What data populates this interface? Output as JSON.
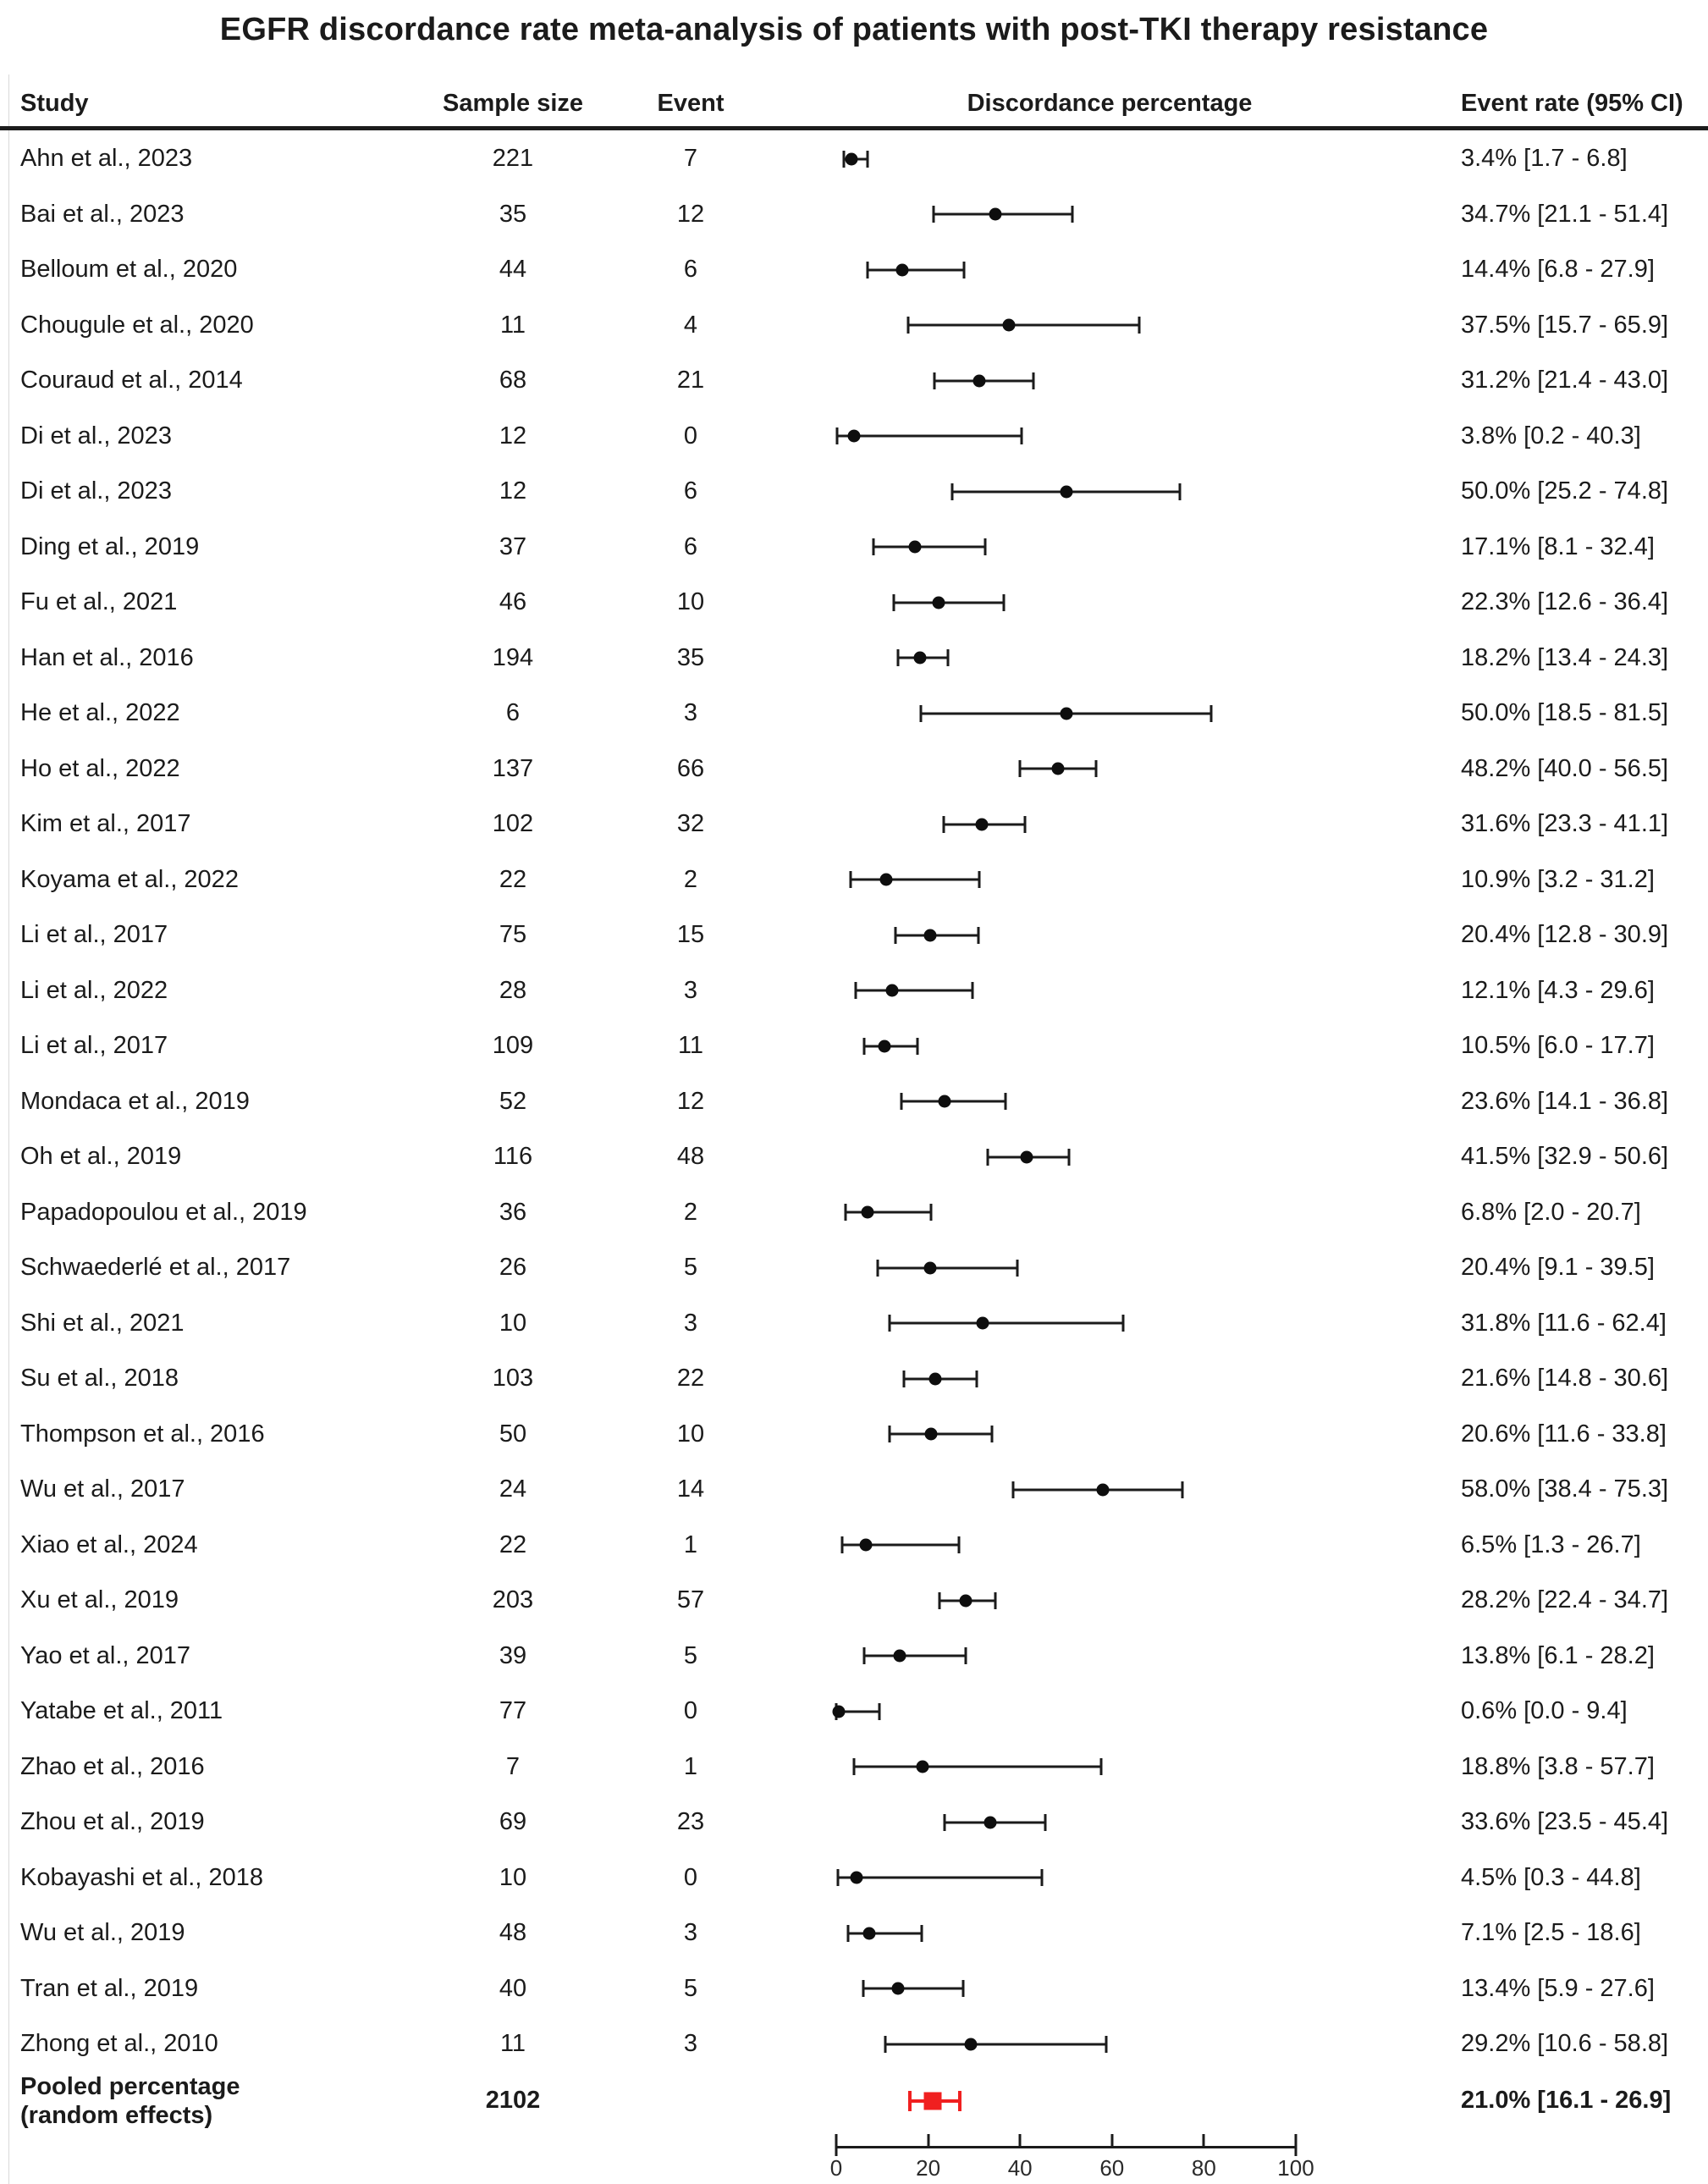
{
  "title": "EGFR discordance rate meta-analysis of patients with post-TKI therapy resistance",
  "columns": {
    "study": "Study",
    "sample_size": "Sample size",
    "event": "Event",
    "plot": "Discordance percentage",
    "rate": "Event rate (95% CI)"
  },
  "colors": {
    "marker": "#0e0e0e",
    "pooled": "#f02020",
    "text": "#1b1b1b"
  },
  "studies": [
    {
      "label": "Ahn et al., 2023",
      "sample": "221",
      "event": "7",
      "rate": 3.4,
      "lo": 1.7,
      "hi": 6.8,
      "rate_text": "3.4% [1.7 - 6.8]"
    },
    {
      "label": "Bai et al., 2023",
      "sample": "35",
      "event": "12",
      "rate": 34.7,
      "lo": 21.1,
      "hi": 51.4,
      "rate_text": "34.7% [21.1 - 51.4]"
    },
    {
      "label": "Belloum et al., 2020",
      "sample": "44",
      "event": "6",
      "rate": 14.4,
      "lo": 6.8,
      "hi": 27.9,
      "rate_text": "14.4% [6.8 - 27.9]"
    },
    {
      "label": "Chougule et al., 2020",
      "sample": "11",
      "event": "4",
      "rate": 37.5,
      "lo": 15.7,
      "hi": 65.9,
      "rate_text": "37.5% [15.7 - 65.9]"
    },
    {
      "label": "Couraud et al., 2014",
      "sample": "68",
      "event": "21",
      "rate": 31.2,
      "lo": 21.4,
      "hi": 43.0,
      "rate_text": "31.2% [21.4 - 43.0]"
    },
    {
      "label": "Di et al., 2023",
      "sample": "12",
      "event": "0",
      "rate": 3.8,
      "lo": 0.2,
      "hi": 40.3,
      "rate_text": "3.8% [0.2 - 40.3]"
    },
    {
      "label": "Di et al., 2023",
      "sample": "12",
      "event": "6",
      "rate": 50.0,
      "lo": 25.2,
      "hi": 74.8,
      "rate_text": "50.0% [25.2 - 74.8]"
    },
    {
      "label": "Ding et al., 2019",
      "sample": "37",
      "event": "6",
      "rate": 17.1,
      "lo": 8.1,
      "hi": 32.4,
      "rate_text": "17.1% [8.1 - 32.4]"
    },
    {
      "label": "Fu et al., 2021",
      "sample": "46",
      "event": "10",
      "rate": 22.3,
      "lo": 12.6,
      "hi": 36.4,
      "rate_text": "22.3% [12.6 - 36.4]"
    },
    {
      "label": "Han et al., 2016",
      "sample": "194",
      "event": "35",
      "rate": 18.2,
      "lo": 13.4,
      "hi": 24.3,
      "rate_text": "18.2% [13.4 - 24.3]"
    },
    {
      "label": "He et al., 2022",
      "sample": "6",
      "event": "3",
      "rate": 50.0,
      "lo": 18.5,
      "hi": 81.5,
      "rate_text": "50.0% [18.5 - 81.5]"
    },
    {
      "label": "Ho et al., 2022",
      "sample": "137",
      "event": "66",
      "rate": 48.2,
      "lo": 40.0,
      "hi": 56.5,
      "rate_text": "48.2% [40.0 - 56.5]"
    },
    {
      "label": "Kim et al., 2017",
      "sample": "102",
      "event": "32",
      "rate": 31.6,
      "lo": 23.3,
      "hi": 41.1,
      "rate_text": "31.6% [23.3 - 41.1]"
    },
    {
      "label": "Koyama et al., 2022",
      "sample": "22",
      "event": "2",
      "rate": 10.9,
      "lo": 3.2,
      "hi": 31.2,
      "rate_text": "10.9% [3.2 - 31.2]"
    },
    {
      "label": "Li et al., 2017",
      "sample": "75",
      "event": "15",
      "rate": 20.4,
      "lo": 12.8,
      "hi": 30.9,
      "rate_text": "20.4% [12.8 - 30.9]"
    },
    {
      "label": "Li et al., 2022",
      "sample": "28",
      "event": "3",
      "rate": 12.1,
      "lo": 4.3,
      "hi": 29.6,
      "rate_text": "12.1% [4.3 - 29.6]"
    },
    {
      "label": "Li et al., 2017",
      "sample": "109",
      "event": "11",
      "rate": 10.5,
      "lo": 6.0,
      "hi": 17.7,
      "rate_text": "10.5% [6.0 - 17.7]"
    },
    {
      "label": "Mondaca et al., 2019",
      "sample": "52",
      "event": "12",
      "rate": 23.6,
      "lo": 14.1,
      "hi": 36.8,
      "rate_text": "23.6% [14.1 - 36.8]"
    },
    {
      "label": "Oh et al., 2019",
      "sample": "116",
      "event": "48",
      "rate": 41.5,
      "lo": 32.9,
      "hi": 50.6,
      "rate_text": "41.5% [32.9 - 50.6]"
    },
    {
      "label": "Papadopoulou et al., 2019",
      "sample": "36",
      "event": "2",
      "rate": 6.8,
      "lo": 2.0,
      "hi": 20.7,
      "rate_text": "6.8% [2.0 - 20.7]"
    },
    {
      "label": "Schwaederlé et al., 2017",
      "sample": "26",
      "event": "5",
      "rate": 20.4,
      "lo": 9.1,
      "hi": 39.5,
      "rate_text": "20.4% [9.1 - 39.5]"
    },
    {
      "label": "Shi et al., 2021",
      "sample": "10",
      "event": "3",
      "rate": 31.8,
      "lo": 11.6,
      "hi": 62.4,
      "rate_text": "31.8% [11.6 - 62.4]"
    },
    {
      "label": "Su et al., 2018",
      "sample": "103",
      "event": "22",
      "rate": 21.6,
      "lo": 14.8,
      "hi": 30.6,
      "rate_text": "21.6% [14.8 - 30.6]"
    },
    {
      "label": "Thompson et al., 2016",
      "sample": "50",
      "event": "10",
      "rate": 20.6,
      "lo": 11.6,
      "hi": 33.8,
      "rate_text": "20.6% [11.6 - 33.8]"
    },
    {
      "label": "Wu et al., 2017",
      "sample": "24",
      "event": "14",
      "rate": 58.0,
      "lo": 38.4,
      "hi": 75.3,
      "rate_text": "58.0% [38.4 - 75.3]"
    },
    {
      "label": "Xiao et al., 2024",
      "sample": "22",
      "event": "1",
      "rate": 6.5,
      "lo": 1.3,
      "hi": 26.7,
      "rate_text": "6.5% [1.3 - 26.7]"
    },
    {
      "label": "Xu et al., 2019",
      "sample": "203",
      "event": "57",
      "rate": 28.2,
      "lo": 22.4,
      "hi": 34.7,
      "rate_text": "28.2% [22.4 - 34.7]"
    },
    {
      "label": "Yao et al., 2017",
      "sample": "39",
      "event": "5",
      "rate": 13.8,
      "lo": 6.1,
      "hi": 28.2,
      "rate_text": "13.8% [6.1 - 28.2]"
    },
    {
      "label": "Yatabe et al., 2011",
      "sample": "77",
      "event": "0",
      "rate": 0.6,
      "lo": 0.0,
      "hi": 9.4,
      "rate_text": "0.6% [0.0 - 9.4]"
    },
    {
      "label": "Zhao et al., 2016",
      "sample": "7",
      "event": "1",
      "rate": 18.8,
      "lo": 3.8,
      "hi": 57.7,
      "rate_text": "18.8% [3.8 - 57.7]"
    },
    {
      "label": "Zhou et al., 2019",
      "sample": "69",
      "event": "23",
      "rate": 33.6,
      "lo": 23.5,
      "hi": 45.4,
      "rate_text": "33.6% [23.5 - 45.4]"
    },
    {
      "label": "Kobayashi et al., 2018",
      "sample": "10",
      "event": "0",
      "rate": 4.5,
      "lo": 0.3,
      "hi": 44.8,
      "rate_text": "4.5% [0.3 - 44.8]"
    },
    {
      "label": "Wu et al., 2019",
      "sample": "48",
      "event": "3",
      "rate": 7.1,
      "lo": 2.5,
      "hi": 18.6,
      "rate_text": "7.1% [2.5 - 18.6]"
    },
    {
      "label": "Tran et al., 2019",
      "sample": "40",
      "event": "5",
      "rate": 13.4,
      "lo": 5.9,
      "hi": 27.6,
      "rate_text": "13.4% [5.9 - 27.6]"
    },
    {
      "label": "Zhong et al., 2010",
      "sample": "11",
      "event": "3",
      "rate": 29.2,
      "lo": 10.6,
      "hi": 58.8,
      "rate_text": "29.2% [10.6 - 58.8]"
    }
  ],
  "pooled": {
    "label_line1": "Pooled percentage",
    "label_line2": "(random effects)",
    "sample": "2102",
    "rate": 21.0,
    "lo": 16.1,
    "hi": 26.9,
    "rate_text": "21.0% [16.1 - 26.9]"
  },
  "axis": {
    "min": 0,
    "max": 100,
    "ticks": [
      0,
      20,
      40,
      60,
      80,
      100
    ]
  },
  "chart_data": {
    "type": "scatter",
    "subtype": "forest-plot",
    "title": "EGFR discordance rate meta-analysis of patients with post-TKI therapy resistance",
    "xlabel": "Discordance percentage",
    "xlim": [
      0,
      100
    ],
    "xticks": [
      0,
      20,
      40,
      60,
      80,
      100
    ],
    "grid": false,
    "categories": [
      "Ahn et al., 2023",
      "Bai et al., 2023",
      "Belloum et al., 2020",
      "Chougule et al., 2020",
      "Couraud et al., 2014",
      "Di et al., 2023",
      "Di et al., 2023",
      "Ding et al., 2019",
      "Fu et al., 2021",
      "Han et al., 2016",
      "He et al., 2022",
      "Ho et al., 2022",
      "Kim et al., 2017",
      "Koyama et al., 2022",
      "Li et al., 2017",
      "Li et al., 2022",
      "Li et al., 2017",
      "Mondaca et al., 2019",
      "Oh et al., 2019",
      "Papadopoulou et al., 2019",
      "Schwaederlé et al., 2017",
      "Shi et al., 2021",
      "Su et al., 2018",
      "Thompson et al., 2016",
      "Wu et al., 2017",
      "Xiao et al., 2024",
      "Xu et al., 2019",
      "Yao et al., 2017",
      "Yatabe et al., 2011",
      "Zhao et al., 2016",
      "Zhou et al., 2019",
      "Kobayashi et al., 2018",
      "Wu et al., 2019",
      "Tran et al., 2019",
      "Zhong et al., 2010"
    ],
    "series": [
      {
        "name": "Sample size",
        "values": [
          221,
          35,
          44,
          11,
          68,
          12,
          12,
          37,
          46,
          194,
          6,
          137,
          102,
          22,
          75,
          28,
          109,
          52,
          116,
          36,
          26,
          10,
          103,
          50,
          24,
          22,
          203,
          39,
          77,
          7,
          69,
          10,
          48,
          40,
          11
        ]
      },
      {
        "name": "Event",
        "values": [
          7,
          12,
          6,
          4,
          21,
          0,
          6,
          6,
          10,
          35,
          3,
          66,
          32,
          2,
          15,
          3,
          11,
          12,
          48,
          2,
          5,
          3,
          22,
          10,
          14,
          1,
          57,
          5,
          0,
          1,
          23,
          0,
          3,
          5,
          3
        ]
      },
      {
        "name": "Event rate %",
        "values": [
          3.4,
          34.7,
          14.4,
          37.5,
          31.2,
          3.8,
          50.0,
          17.1,
          22.3,
          18.2,
          50.0,
          48.2,
          31.6,
          10.9,
          20.4,
          12.1,
          10.5,
          23.6,
          41.5,
          6.8,
          20.4,
          31.8,
          21.6,
          20.6,
          58.0,
          6.5,
          28.2,
          13.8,
          0.6,
          18.8,
          33.6,
          4.5,
          7.1,
          13.4,
          29.2
        ]
      },
      {
        "name": "CI lower",
        "values": [
          1.7,
          21.1,
          6.8,
          15.7,
          21.4,
          0.2,
          25.2,
          8.1,
          12.6,
          13.4,
          18.5,
          40.0,
          23.3,
          3.2,
          12.8,
          4.3,
          6.0,
          14.1,
          32.9,
          2.0,
          9.1,
          11.6,
          14.8,
          11.6,
          38.4,
          1.3,
          22.4,
          6.1,
          0.0,
          3.8,
          23.5,
          0.3,
          2.5,
          5.9,
          10.6
        ]
      },
      {
        "name": "CI upper",
        "values": [
          6.8,
          51.4,
          27.9,
          65.9,
          43.0,
          40.3,
          74.8,
          32.4,
          36.4,
          24.3,
          81.5,
          56.5,
          41.1,
          31.2,
          30.9,
          29.6,
          17.7,
          36.8,
          50.6,
          20.7,
          39.5,
          62.4,
          30.6,
          33.8,
          75.3,
          26.7,
          34.7,
          28.2,
          9.4,
          57.7,
          45.4,
          44.8,
          18.6,
          27.6,
          58.8
        ]
      }
    ],
    "pooled": {
      "name": "Pooled percentage (random effects)",
      "sample_size": 2102,
      "rate": 21.0,
      "ci": [
        16.1,
        26.9
      ],
      "color": "#f02020"
    }
  }
}
